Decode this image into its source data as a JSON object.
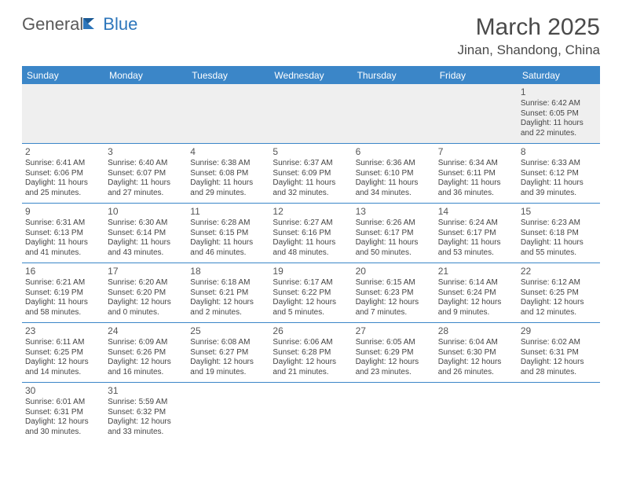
{
  "brand": {
    "g": "General",
    "b": "Blue"
  },
  "title": "March 2025",
  "location": "Jinan, Shandong, China",
  "colors": {
    "header_bg": "#3b86c8",
    "header_text": "#ffffff",
    "border": "#3b86c8",
    "title_text": "#4a4a4a",
    "body_text": "#444444",
    "logo_blue": "#2d76bb",
    "logo_gray": "#5a5a5a",
    "firstrow_bg": "#efefef"
  },
  "weekdays": [
    "Sunday",
    "Monday",
    "Tuesday",
    "Wednesday",
    "Thursday",
    "Friday",
    "Saturday"
  ],
  "cells": [
    {
      "day": "",
      "lines": []
    },
    {
      "day": "",
      "lines": []
    },
    {
      "day": "",
      "lines": []
    },
    {
      "day": "",
      "lines": []
    },
    {
      "day": "",
      "lines": []
    },
    {
      "day": "",
      "lines": []
    },
    {
      "day": "1",
      "lines": [
        "Sunrise: 6:42 AM",
        "Sunset: 6:05 PM",
        "Daylight: 11 hours and 22 minutes."
      ]
    },
    {
      "day": "2",
      "lines": [
        "Sunrise: 6:41 AM",
        "Sunset: 6:06 PM",
        "Daylight: 11 hours and 25 minutes."
      ]
    },
    {
      "day": "3",
      "lines": [
        "Sunrise: 6:40 AM",
        "Sunset: 6:07 PM",
        "Daylight: 11 hours and 27 minutes."
      ]
    },
    {
      "day": "4",
      "lines": [
        "Sunrise: 6:38 AM",
        "Sunset: 6:08 PM",
        "Daylight: 11 hours and 29 minutes."
      ]
    },
    {
      "day": "5",
      "lines": [
        "Sunrise: 6:37 AM",
        "Sunset: 6:09 PM",
        "Daylight: 11 hours and 32 minutes."
      ]
    },
    {
      "day": "6",
      "lines": [
        "Sunrise: 6:36 AM",
        "Sunset: 6:10 PM",
        "Daylight: 11 hours and 34 minutes."
      ]
    },
    {
      "day": "7",
      "lines": [
        "Sunrise: 6:34 AM",
        "Sunset: 6:11 PM",
        "Daylight: 11 hours and 36 minutes."
      ]
    },
    {
      "day": "8",
      "lines": [
        "Sunrise: 6:33 AM",
        "Sunset: 6:12 PM",
        "Daylight: 11 hours and 39 minutes."
      ]
    },
    {
      "day": "9",
      "lines": [
        "Sunrise: 6:31 AM",
        "Sunset: 6:13 PM",
        "Daylight: 11 hours and 41 minutes."
      ]
    },
    {
      "day": "10",
      "lines": [
        "Sunrise: 6:30 AM",
        "Sunset: 6:14 PM",
        "Daylight: 11 hours and 43 minutes."
      ]
    },
    {
      "day": "11",
      "lines": [
        "Sunrise: 6:28 AM",
        "Sunset: 6:15 PM",
        "Daylight: 11 hours and 46 minutes."
      ]
    },
    {
      "day": "12",
      "lines": [
        "Sunrise: 6:27 AM",
        "Sunset: 6:16 PM",
        "Daylight: 11 hours and 48 minutes."
      ]
    },
    {
      "day": "13",
      "lines": [
        "Sunrise: 6:26 AM",
        "Sunset: 6:17 PM",
        "Daylight: 11 hours and 50 minutes."
      ]
    },
    {
      "day": "14",
      "lines": [
        "Sunrise: 6:24 AM",
        "Sunset: 6:17 PM",
        "Daylight: 11 hours and 53 minutes."
      ]
    },
    {
      "day": "15",
      "lines": [
        "Sunrise: 6:23 AM",
        "Sunset: 6:18 PM",
        "Daylight: 11 hours and 55 minutes."
      ]
    },
    {
      "day": "16",
      "lines": [
        "Sunrise: 6:21 AM",
        "Sunset: 6:19 PM",
        "Daylight: 11 hours and 58 minutes."
      ]
    },
    {
      "day": "17",
      "lines": [
        "Sunrise: 6:20 AM",
        "Sunset: 6:20 PM",
        "Daylight: 12 hours and 0 minutes."
      ]
    },
    {
      "day": "18",
      "lines": [
        "Sunrise: 6:18 AM",
        "Sunset: 6:21 PM",
        "Daylight: 12 hours and 2 minutes."
      ]
    },
    {
      "day": "19",
      "lines": [
        "Sunrise: 6:17 AM",
        "Sunset: 6:22 PM",
        "Daylight: 12 hours and 5 minutes."
      ]
    },
    {
      "day": "20",
      "lines": [
        "Sunrise: 6:15 AM",
        "Sunset: 6:23 PM",
        "Daylight: 12 hours and 7 minutes."
      ]
    },
    {
      "day": "21",
      "lines": [
        "Sunrise: 6:14 AM",
        "Sunset: 6:24 PM",
        "Daylight: 12 hours and 9 minutes."
      ]
    },
    {
      "day": "22",
      "lines": [
        "Sunrise: 6:12 AM",
        "Sunset: 6:25 PM",
        "Daylight: 12 hours and 12 minutes."
      ]
    },
    {
      "day": "23",
      "lines": [
        "Sunrise: 6:11 AM",
        "Sunset: 6:25 PM",
        "Daylight: 12 hours and 14 minutes."
      ]
    },
    {
      "day": "24",
      "lines": [
        "Sunrise: 6:09 AM",
        "Sunset: 6:26 PM",
        "Daylight: 12 hours and 16 minutes."
      ]
    },
    {
      "day": "25",
      "lines": [
        "Sunrise: 6:08 AM",
        "Sunset: 6:27 PM",
        "Daylight: 12 hours and 19 minutes."
      ]
    },
    {
      "day": "26",
      "lines": [
        "Sunrise: 6:06 AM",
        "Sunset: 6:28 PM",
        "Daylight: 12 hours and 21 minutes."
      ]
    },
    {
      "day": "27",
      "lines": [
        "Sunrise: 6:05 AM",
        "Sunset: 6:29 PM",
        "Daylight: 12 hours and 23 minutes."
      ]
    },
    {
      "day": "28",
      "lines": [
        "Sunrise: 6:04 AM",
        "Sunset: 6:30 PM",
        "Daylight: 12 hours and 26 minutes."
      ]
    },
    {
      "day": "29",
      "lines": [
        "Sunrise: 6:02 AM",
        "Sunset: 6:31 PM",
        "Daylight: 12 hours and 28 minutes."
      ]
    },
    {
      "day": "30",
      "lines": [
        "Sunrise: 6:01 AM",
        "Sunset: 6:31 PM",
        "Daylight: 12 hours and 30 minutes."
      ]
    },
    {
      "day": "31",
      "lines": [
        "Sunrise: 5:59 AM",
        "Sunset: 6:32 PM",
        "Daylight: 12 hours and 33 minutes."
      ]
    },
    {
      "day": "",
      "lines": []
    },
    {
      "day": "",
      "lines": []
    },
    {
      "day": "",
      "lines": []
    },
    {
      "day": "",
      "lines": []
    },
    {
      "day": "",
      "lines": []
    }
  ]
}
